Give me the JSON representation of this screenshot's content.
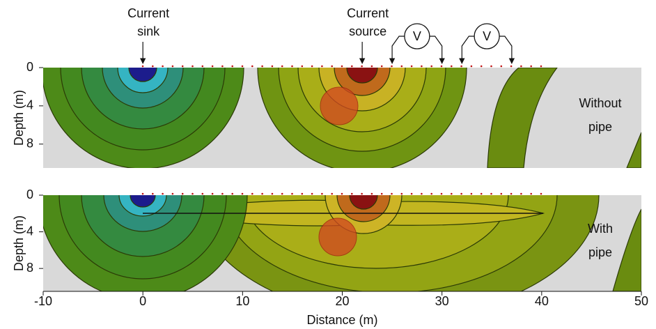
{
  "chart_data": [
    {
      "type": "surface",
      "label": [
        "Without",
        "pipe"
      ],
      "ylabel": "Depth (m)",
      "xlim": [
        -10,
        50
      ],
      "ylim": [
        0,
        10.5
      ],
      "yticks": [
        0,
        4,
        8
      ],
      "annotations": [
        {
          "text": [
            "Current",
            "sink"
          ],
          "x": 0
        },
        {
          "text": [
            "Current",
            "source"
          ],
          "x": 22
        },
        {
          "text": "V",
          "x": [
            25,
            30
          ]
        },
        {
          "text": "V",
          "x": [
            32,
            37
          ]
        }
      ]
    },
    {
      "type": "surface",
      "label": [
        "With",
        "pipe"
      ],
      "ylabel": "Depth (m)",
      "xlabel": "Distance (m)",
      "xlim": [
        -10,
        50
      ],
      "ylim": [
        0,
        10.5
      ],
      "yticks": [
        0,
        4,
        8
      ],
      "xticks": [
        -10,
        0,
        10,
        20,
        30,
        40,
        50
      ]
    }
  ]
}
